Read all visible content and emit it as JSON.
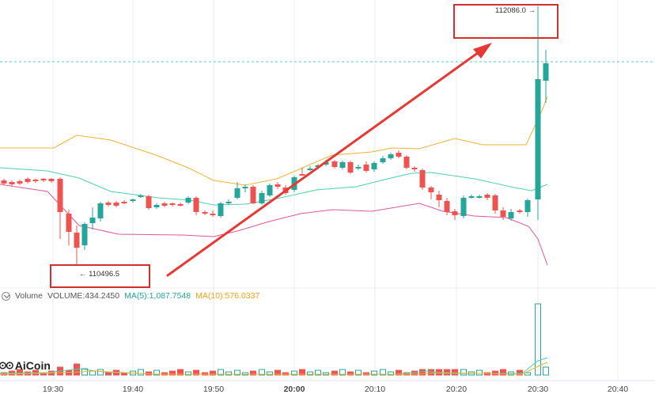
{
  "chart_data": {
    "type": "candlestick",
    "x_ticks": [
      "19:30",
      "19:40",
      "19:50",
      "20:00",
      "20:10",
      "20:20",
      "20:30",
      "20:40"
    ],
    "annotations": {
      "high": "112086.0",
      "low": "110496.5"
    },
    "volume_legend": {
      "title": "Volume",
      "volume": "VOLUME:434.2450",
      "ma5": "MA(5):1,087.7548",
      "ma10": "MA(10):576.0337"
    },
    "colors": {
      "up": "#26a69a",
      "down": "#ef5350",
      "ma_upper": "#f2b233",
      "ma_mid": "#4fcfb0",
      "ma_lower": "#e0569b",
      "arrow": "#e53935",
      "grid": "#e9ecef",
      "current_price_line": "#4fd1c5"
    }
  },
  "brand": {
    "name": "AiCoin"
  }
}
